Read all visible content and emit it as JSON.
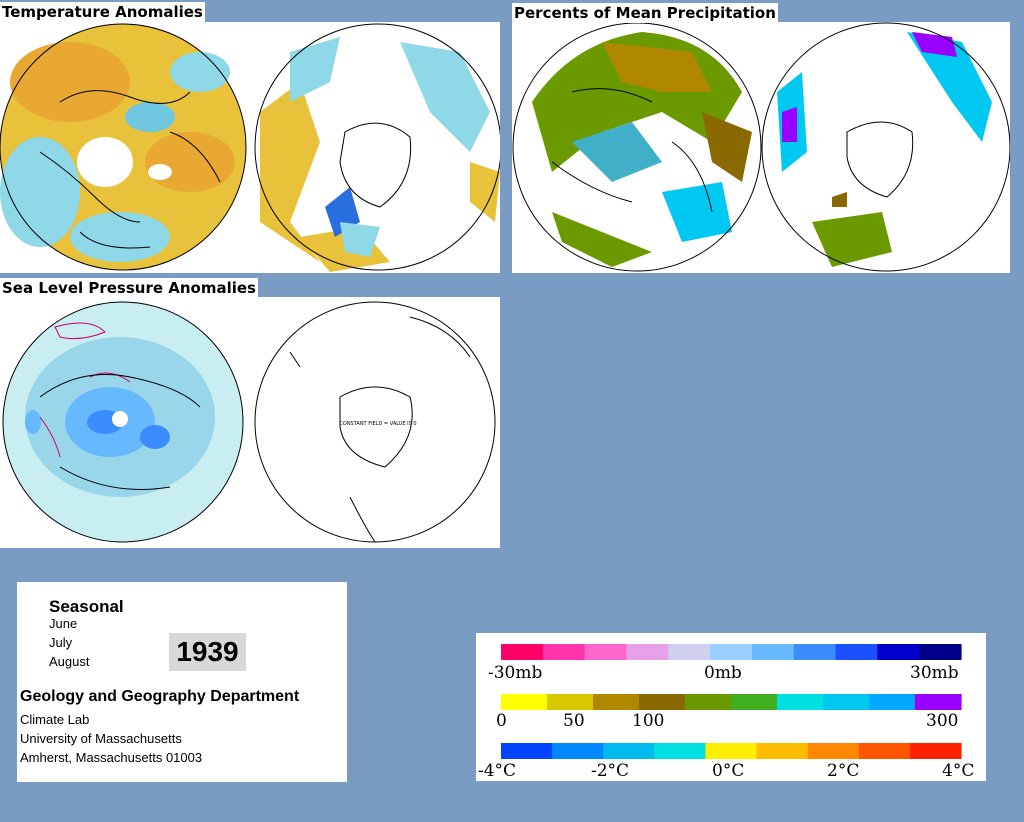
{
  "panels": {
    "temperature": {
      "title": "Temperature Anomalies"
    },
    "precipitation": {
      "title": "Percents of Mean Precipitation"
    },
    "pressure": {
      "title": "Sea Level Pressure Anomalies",
      "south_label": "CONSTANT FIELD = VALUE IS 0"
    }
  },
  "info": {
    "period": "Seasonal",
    "months": [
      "June",
      "July",
      "August"
    ],
    "year": "1939",
    "department": "Geology and Geography Department",
    "lab": "Climate Lab",
    "university": "University of Massachusetts",
    "address": "Amherst, Massachusetts 01003"
  },
  "legends": {
    "pressure": {
      "labels": [
        "-30mb",
        "0mb",
        "30mb"
      ],
      "colors": [
        "#ff0066",
        "#ff33aa",
        "#ff66cc",
        "#e8a0e8",
        "#d0d0f0",
        "#9ad0ff",
        "#66b8ff",
        "#3a8cff",
        "#1a50ff",
        "#0000cc",
        "#000088"
      ]
    },
    "precipitation": {
      "labels": [
        "0",
        "50",
        "100",
        "300"
      ],
      "colors": [
        "#ffff00",
        "#d8c800",
        "#b08800",
        "#8a6a00",
        "#6a9a00",
        "#40b020",
        "#00e0e0",
        "#00c8f0",
        "#00a8ff",
        "#9900ff"
      ]
    },
    "temperature": {
      "labels": [
        "-4°C",
        "-2°C",
        "0°C",
        "2°C",
        "4°C"
      ],
      "colors": [
        "#0044ff",
        "#0088ff",
        "#00bbee",
        "#00e0e0",
        "#ffee00",
        "#ffbb00",
        "#ff8800",
        "#ff5500",
        "#ff2200"
      ]
    }
  }
}
